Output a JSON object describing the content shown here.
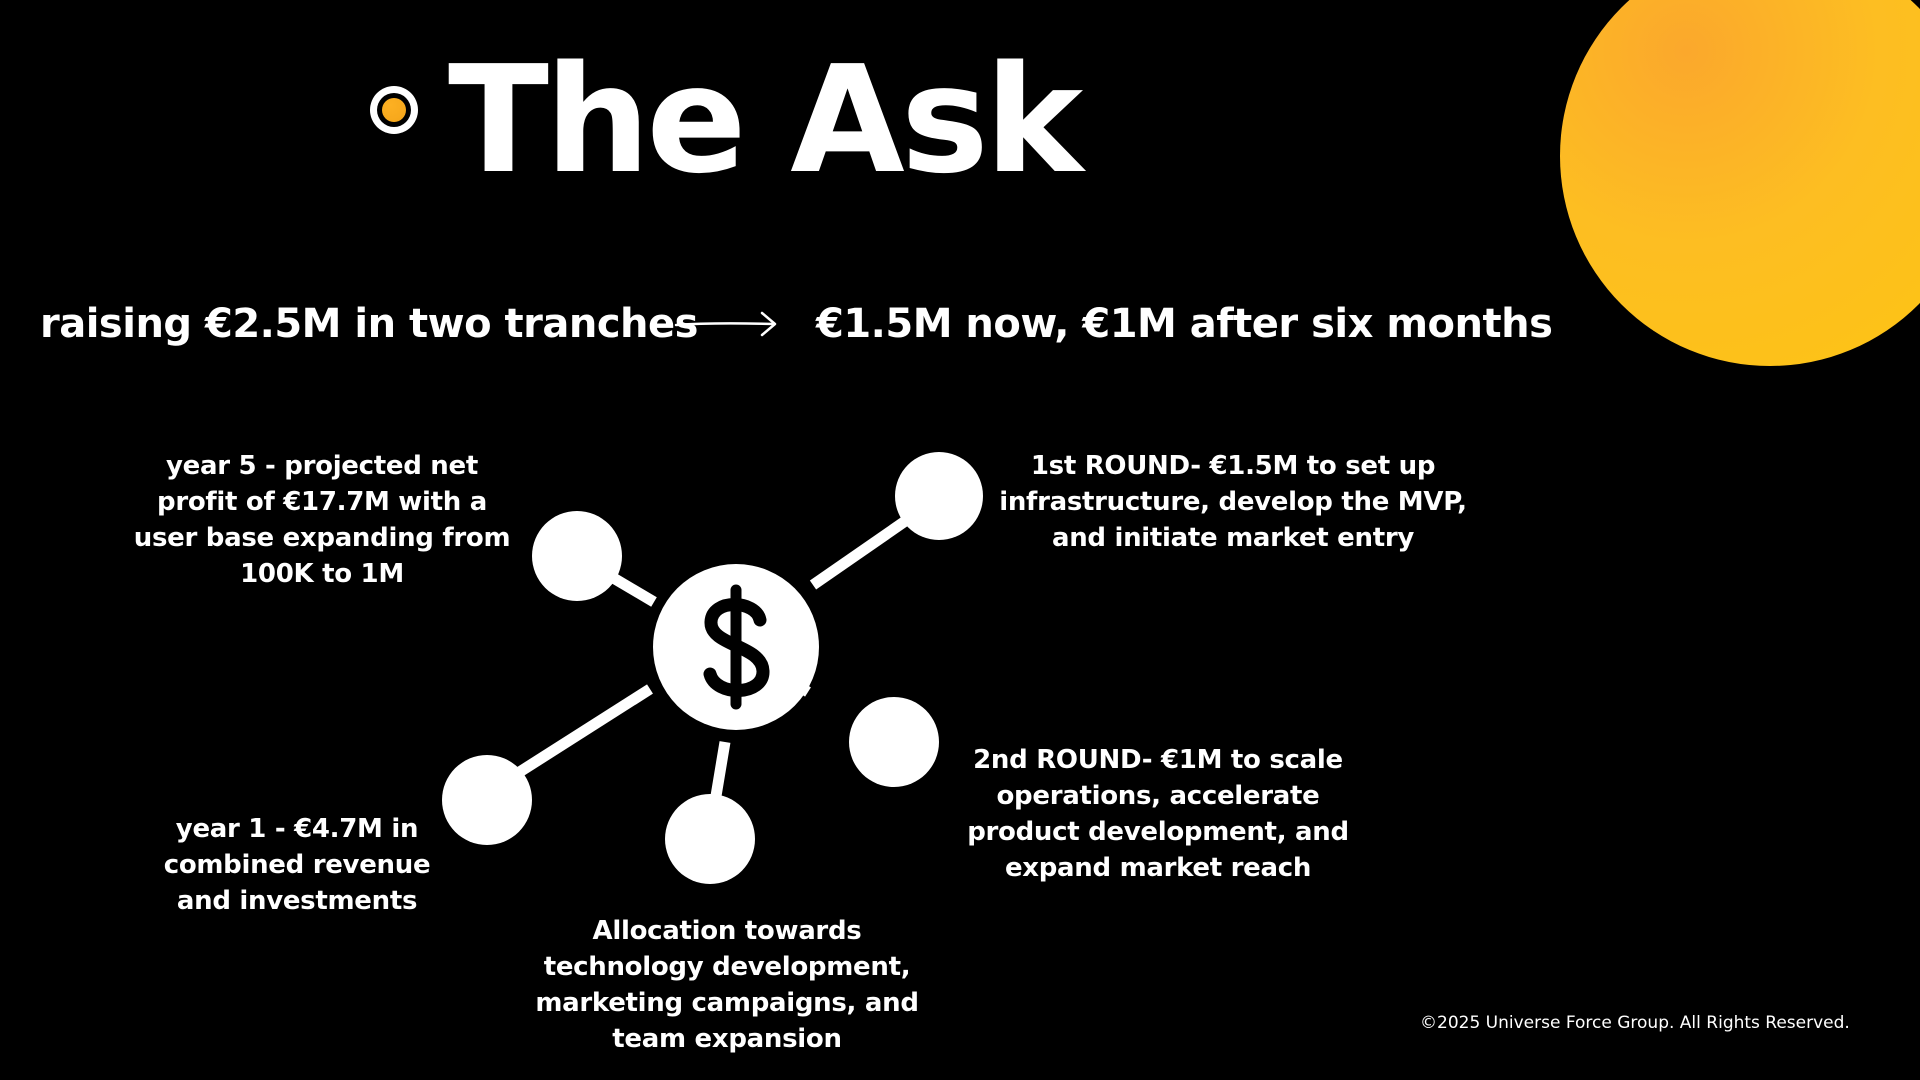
{
  "slide": {
    "title": "The Ask",
    "raising": "raising €2.5M in two tranches",
    "tranches": "€1.5M now, €1M after six months",
    "year5": "year 5 - projected net profit of €17.7M with a user base expanding from 100K to 1M",
    "round1": "1st ROUND- €1.5M to set up infrastructure, develop the MVP, and initiate market entry",
    "round2": "2nd ROUND- €1M to scale operations, accelerate product development, and expand market reach",
    "year1": "year 1 - €4.7M in combined revenue and investments",
    "allocation": "Allocation towards technology development, marketing campaigns, and team expansion",
    "copyright": "©2025 Universe Force Group. All Rights Reserved."
  },
  "icons": {
    "network": "dollar-network-icon",
    "arrow": "arrow-right-icon"
  },
  "colors": {
    "background": "#000000",
    "text": "#ffffff",
    "accent": "#fdb022"
  }
}
